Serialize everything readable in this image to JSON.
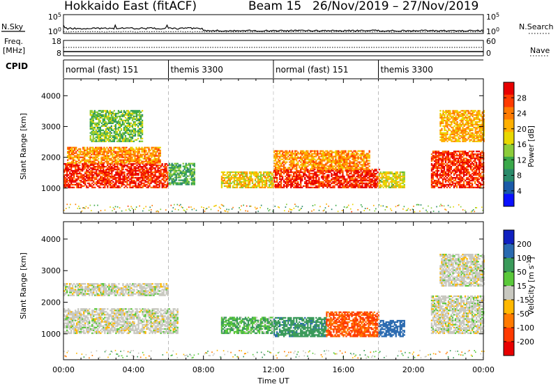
{
  "header": {
    "title": "Hokkaido East (fitACF)",
    "beam": "Beam 15",
    "date_range": "26/Nov/2019 – 27/Nov/2019"
  },
  "strip_labels": {
    "nsky": "N.Sky",
    "nsearch": "N.Search",
    "freq_line1": "Freq.",
    "freq_line2": "[MHz]",
    "nave": "Nave",
    "cpid": "CPID"
  },
  "noise_panel": {
    "left_ticks": [
      "10^5",
      "10^0"
    ],
    "right_ticks": [
      "10^5",
      "10^0"
    ]
  },
  "freq_panel": {
    "left_ticks": [
      "18",
      "8"
    ],
    "right_ticks": [
      "60",
      "0"
    ]
  },
  "cpid_segments": [
    {
      "label": "normal (fast) 151",
      "start_hour": 0
    },
    {
      "label": "themis 3300",
      "start_hour": 6
    },
    {
      "label": "normal (fast) 151",
      "start_hour": 12
    },
    {
      "label": "themis 3300",
      "start_hour": 18
    }
  ],
  "chart_data": [
    {
      "type": "heatmap",
      "name": "power",
      "ylabel": "Slant Range [km]",
      "yticks": [
        1000,
        2000,
        3000,
        4000
      ],
      "ylim": [
        180,
        4550
      ],
      "xlim": [
        0,
        24
      ],
      "colorbar": {
        "label": "Power [dB]",
        "ticks": [
          "28",
          "24",
          "20",
          "16",
          "12",
          "8",
          "4"
        ],
        "colors": [
          "#e80000",
          "#ff3a00",
          "#ff7a00",
          "#ffb000",
          "#e8d800",
          "#8ccc3a",
          "#3aa84a",
          "#2a8a6a",
          "#1a5aa8",
          "#0a10ff"
        ]
      },
      "regions": [
        {
          "t0": 0.0,
          "t1": 6.0,
          "r0": 1000,
          "r1": 1800,
          "value": 28
        },
        {
          "t0": 0.2,
          "t1": 5.5,
          "r0": 1800,
          "r1": 2300,
          "value": 22
        },
        {
          "t0": 1.5,
          "t1": 4.5,
          "r0": 2500,
          "r1": 3500,
          "value": 12
        },
        {
          "t0": 6.0,
          "t1": 7.5,
          "r0": 1100,
          "r1": 1800,
          "value": 10
        },
        {
          "t0": 9.0,
          "t1": 12.0,
          "r0": 1000,
          "r1": 1500,
          "value": 18
        },
        {
          "t0": 12.0,
          "t1": 18.0,
          "r0": 1000,
          "r1": 1600,
          "value": 28
        },
        {
          "t0": 12.0,
          "t1": 17.5,
          "r0": 1600,
          "r1": 2200,
          "value": 22
        },
        {
          "t0": 18.0,
          "t1": 19.5,
          "r0": 1000,
          "r1": 1500,
          "value": 16
        },
        {
          "t0": 21.0,
          "t1": 24.0,
          "r0": 1000,
          "r1": 2200,
          "value": 28
        },
        {
          "t0": 21.5,
          "t1": 24.0,
          "r0": 2500,
          "r1": 3500,
          "value": 20
        }
      ]
    },
    {
      "type": "heatmap",
      "name": "velocity",
      "ylabel": "Slant Range [km]",
      "xlabel": "Time UT",
      "yticks": [
        1000,
        2000,
        3000,
        4000
      ],
      "xticks": [
        "00:00",
        "04:00",
        "08:00",
        "12:00",
        "16:00",
        "20:00",
        "00:00"
      ],
      "ylim": [
        180,
        4550
      ],
      "xlim": [
        0,
        24
      ],
      "colorbar": {
        "label": "Velocity [m s^-1]",
        "ticks": [
          "200",
          "100",
          "50",
          "15",
          "-15",
          "-50",
          "-100",
          "-200"
        ],
        "colors": [
          "#1020c0",
          "#2a6ab0",
          "#3a9a5a",
          "#5ac83a",
          "#c8c8c0",
          "#ffb800",
          "#ff7a00",
          "#ff3a00",
          "#e80000"
        ]
      },
      "regions": [
        {
          "t0": 0.0,
          "t1": 6.5,
          "r0": 1000,
          "r1": 1800,
          "value": 0
        },
        {
          "t0": 0.0,
          "t1": 6.0,
          "r0": 2200,
          "r1": 2600,
          "value": 0
        },
        {
          "t0": 9.0,
          "t1": 12.0,
          "r0": 1000,
          "r1": 1500,
          "value": 30
        },
        {
          "t0": 12.0,
          "t1": 15.0,
          "r0": 900,
          "r1": 1500,
          "value": 60
        },
        {
          "t0": 15.0,
          "t1": 18.0,
          "r0": 900,
          "r1": 1700,
          "value": -80
        },
        {
          "t0": 18.0,
          "t1": 19.5,
          "r0": 900,
          "r1": 1400,
          "value": 120
        },
        {
          "t0": 21.0,
          "t1": 24.0,
          "r0": 1000,
          "r1": 2200,
          "value": 0
        },
        {
          "t0": 21.5,
          "t1": 24.0,
          "r0": 2500,
          "r1": 3500,
          "value": 0
        }
      ]
    }
  ]
}
